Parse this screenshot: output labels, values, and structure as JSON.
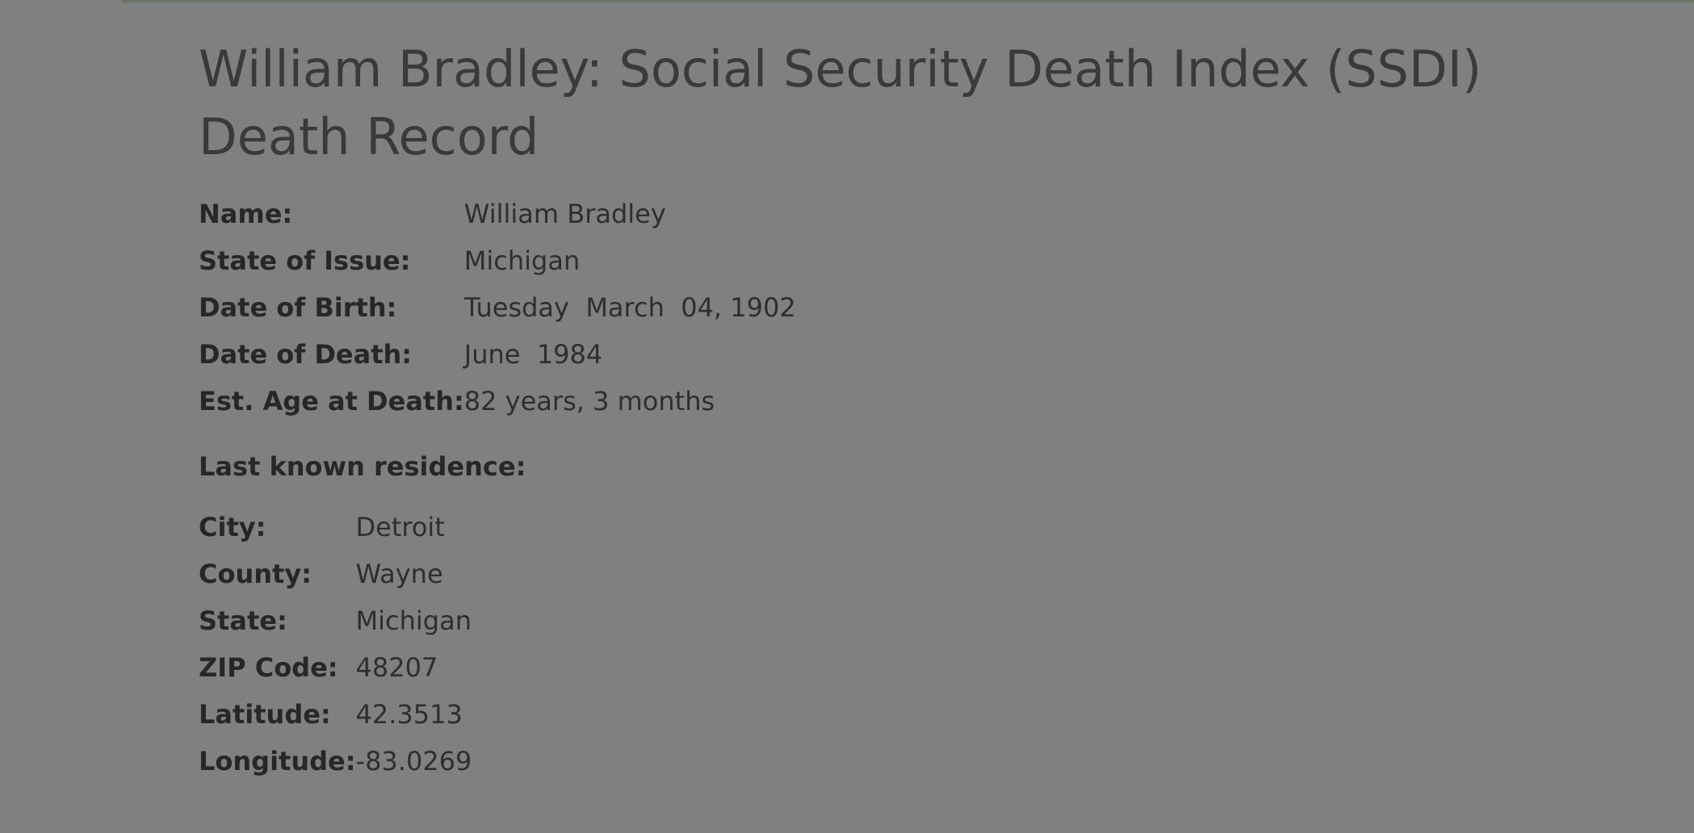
{
  "title": "William Bradley: Social Security Death Index (SSDI) Death Record",
  "record": [
    {
      "label": "Name:",
      "value": "William Bradley"
    },
    {
      "label": "State of Issue:",
      "value": "Michigan"
    },
    {
      "label": "Date of Birth:",
      "value": "Tuesday  March  04, 1902"
    },
    {
      "label": "Date of Death:",
      "value": "June  1984"
    },
    {
      "label": "Est. Age at Death:",
      "value": "82 years, 3 months"
    }
  ],
  "residence": {
    "heading": "Last known residence:",
    "fields": [
      {
        "label": "City:",
        "value": "Detroit"
      },
      {
        "label": "County:",
        "value": "Wayne"
      },
      {
        "label": "State:",
        "value": "Michigan"
      },
      {
        "label": "ZIP Code:",
        "value": "48207"
      },
      {
        "label": "Latitude:",
        "value": "42.3513"
      },
      {
        "label": "Longitude:",
        "value": "-83.0269"
      }
    ]
  }
}
